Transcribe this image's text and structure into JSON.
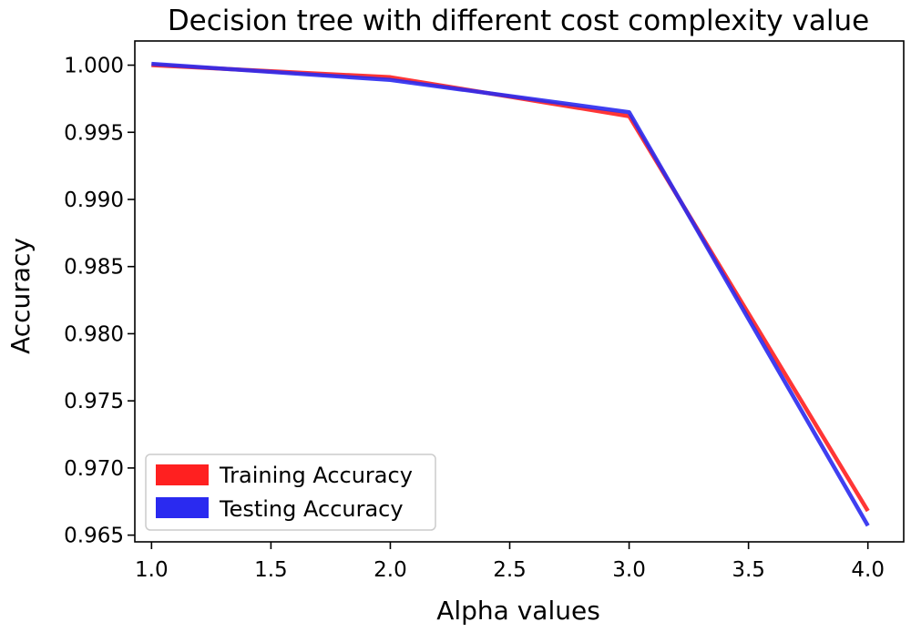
{
  "chart_data": {
    "type": "line",
    "title": "Decision tree with different cost complexity value",
    "xlabel": "Alpha values",
    "ylabel": "Accuracy",
    "xlim": [
      0.93,
      4.15
    ],
    "ylim": [
      0.9645,
      1.0018
    ],
    "x": [
      1.0,
      2.0,
      3.0,
      4.0
    ],
    "x_ticks": [
      1.0,
      1.5,
      2.0,
      2.5,
      3.0,
      3.5,
      4.0
    ],
    "x_tick_labels": [
      "1.0",
      "1.5",
      "2.0",
      "2.5",
      "3.0",
      "3.5",
      "4.0"
    ],
    "y_ticks": [
      0.965,
      0.97,
      0.975,
      0.98,
      0.985,
      0.99,
      0.995,
      1.0
    ],
    "y_tick_labels": [
      "0.965",
      "0.970",
      "0.975",
      "0.980",
      "0.985",
      "0.990",
      "0.995",
      "1.000"
    ],
    "series": [
      {
        "name": "Training Accuracy",
        "color": "#ff2020",
        "values": [
          1.0,
          0.9991,
          0.9962,
          0.9668
        ]
      },
      {
        "name": "Testing Accuracy",
        "color": "#2a2af0",
        "values": [
          1.0001,
          0.9989,
          0.9965,
          0.9657
        ]
      }
    ],
    "legend_position": "lower-left",
    "grid": false
  }
}
